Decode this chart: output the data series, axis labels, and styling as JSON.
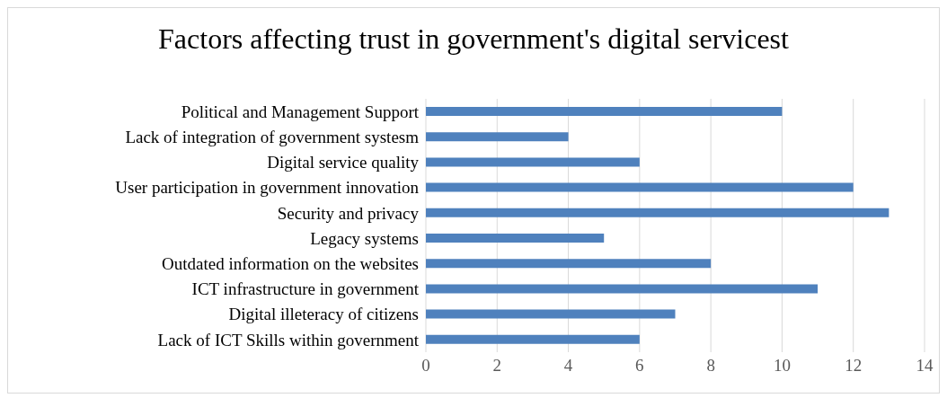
{
  "chart_data": {
    "type": "bar",
    "orientation": "horizontal",
    "title": "Factors affecting trust in government's digital servicest",
    "categories": [
      "Political and Management Support",
      "Lack of integration of government systesm",
      "Digital service quality",
      "User participation in government innovation",
      "Security and privacy",
      "Legacy systems",
      "Outdated information on the websites",
      "ICT infrastructure in government",
      "Digital illeteracy of citizens",
      "Lack of ICT Skills within government"
    ],
    "values": [
      10,
      4,
      6,
      12,
      13,
      5,
      8,
      11,
      7,
      6
    ],
    "color": "#4f81bd",
    "xlim": [
      0,
      14
    ],
    "xticks": [
      0,
      2,
      4,
      6,
      8,
      10,
      12,
      14
    ],
    "grid": "x",
    "legend": false
  }
}
